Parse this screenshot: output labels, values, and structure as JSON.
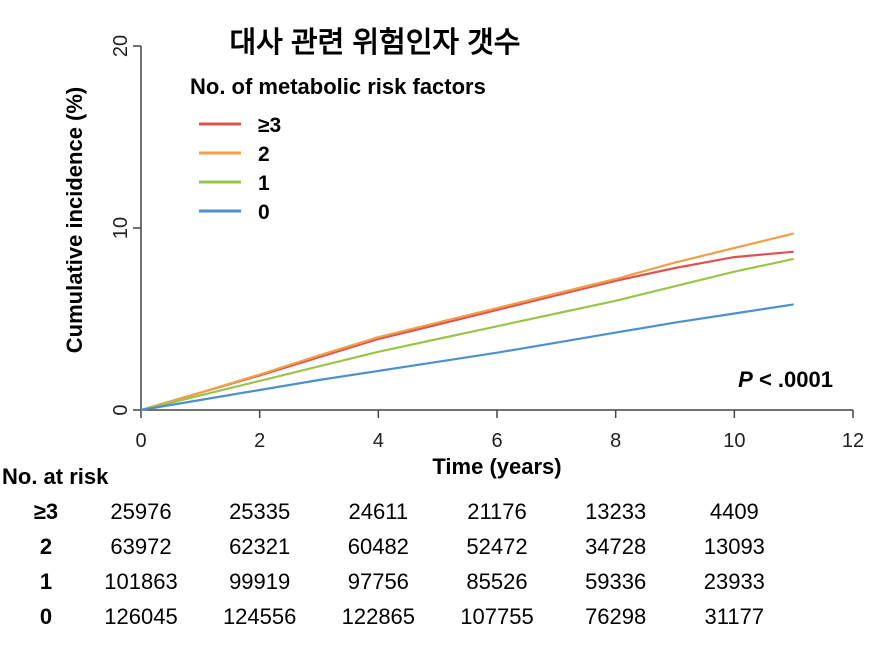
{
  "chart_data": {
    "type": "line",
    "title": "대사 관련 위험인자 갯수",
    "legend_title": "No. of metabolic risk factors",
    "legend_position": "top-left",
    "xlabel": "Time (years)",
    "ylabel": "Cumulative incidence (%)",
    "xlim": [
      0,
      12
    ],
    "ylim": [
      0,
      20
    ],
    "x_ticks": [
      "0",
      "2",
      "4",
      "6",
      "8",
      "10",
      "12"
    ],
    "y_ticks": [
      "0",
      "10",
      "20"
    ],
    "grid": false,
    "annotation": {
      "prefix": "P",
      "text": " < .0001"
    },
    "series": [
      {
        "name": "≥3",
        "color": "#e0524c",
        "x": [
          0,
          1,
          2,
          3,
          4,
          5,
          6,
          7,
          8,
          9,
          10,
          11
        ],
        "y": [
          0,
          0.95,
          1.9,
          2.9,
          3.9,
          4.7,
          5.5,
          6.3,
          7.1,
          7.8,
          8.4,
          8.7
        ]
      },
      {
        "name": "2",
        "color": "#f0a04a",
        "x": [
          0,
          1,
          2,
          3,
          4,
          5,
          6,
          7,
          8,
          9,
          10,
          11
        ],
        "y": [
          0,
          0.95,
          1.95,
          3.0,
          4.0,
          4.8,
          5.6,
          6.4,
          7.2,
          8.1,
          8.9,
          9.7
        ]
      },
      {
        "name": "1",
        "color": "#9ac44a",
        "x": [
          0,
          1,
          2,
          3,
          4,
          5,
          6,
          7,
          8,
          9,
          10,
          11
        ],
        "y": [
          0,
          0.8,
          1.6,
          2.4,
          3.2,
          3.9,
          4.6,
          5.3,
          6.0,
          6.8,
          7.6,
          8.3
        ]
      },
      {
        "name": "0",
        "color": "#4e8fcf",
        "x": [
          0,
          1,
          2,
          3,
          4,
          5,
          6,
          7,
          8,
          9,
          10,
          11
        ],
        "y": [
          0,
          0.55,
          1.1,
          1.65,
          2.15,
          2.65,
          3.15,
          3.7,
          4.25,
          4.8,
          5.3,
          5.8
        ]
      }
    ]
  },
  "risk_table": {
    "title": "No. at risk",
    "time_points": [
      0,
      2,
      4,
      6,
      8,
      10
    ],
    "rows": [
      {
        "group": "≥3",
        "values": [
          "25976",
          "25335",
          "24611",
          "21176",
          "13233",
          "4409"
        ]
      },
      {
        "group": "2",
        "values": [
          "63972",
          "62321",
          "60482",
          "52472",
          "34728",
          "13093"
        ]
      },
      {
        "group": "1",
        "values": [
          "101863",
          "99919",
          "97756",
          "85526",
          "59336",
          "23933"
        ]
      },
      {
        "group": "0",
        "values": [
          "126045",
          "124556",
          "122865",
          "107755",
          "76298",
          "31177"
        ]
      }
    ]
  }
}
